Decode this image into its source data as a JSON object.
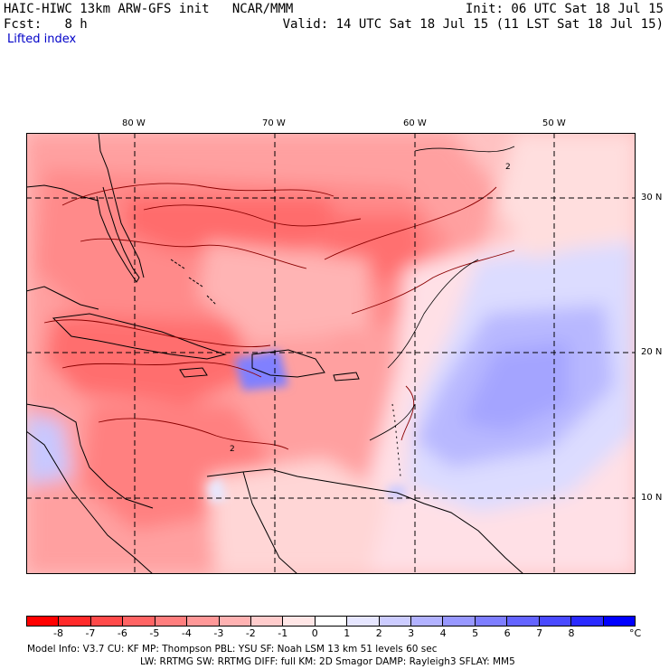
{
  "header": {
    "model_title": "HAIC-HIWC 13km ARW-GFS init",
    "org": "NCAR/MMM",
    "init_label": "Init: 06 UTC Sat 18 Jul 15",
    "fcst_label": "Fcst:",
    "fcst_value": "8 h",
    "valid_label": "Valid: 14 UTC Sat 18 Jul 15 (11 LST Sat 18 Jul 15)",
    "field_name": "Lifted index"
  },
  "map": {
    "lon_labels": [
      "80 W",
      "70 W",
      "60 W",
      "50 W"
    ],
    "lat_labels": [
      "30 N",
      "20 N",
      "10 N"
    ],
    "contour_label": "2",
    "grid_style": "dashed"
  },
  "colorbar": {
    "unit": "°C",
    "ticks": [
      "-8",
      "-7",
      "-6",
      "-5",
      "-4",
      "-3",
      "-2",
      "-1",
      "0",
      "1",
      "2",
      "3",
      "4",
      "5",
      "6",
      "7",
      "8"
    ],
    "colors": [
      "#ff0000",
      "#ff2a2a",
      "#ff4a4a",
      "#ff6464",
      "#ff7e7e",
      "#ff9898",
      "#ffb2b2",
      "#ffcccc",
      "#ffe6e6",
      "#ffffff",
      "#e6e6ff",
      "#ccccff",
      "#b2b2ff",
      "#9898ff",
      "#7e7eff",
      "#6464ff",
      "#4a4aff",
      "#2a2aff",
      "#0000ff"
    ]
  },
  "footer": {
    "line1": "Model Info: V3.7      CU: KF      MP: Thompson      PBL: YSU        SF: Noah LSM      13 km    51 levels    60 sec",
    "line2": "LW: RRTMG      SW: RRTMG   DIFF: full     KM: 2D Smagor  DAMP: Rayleigh3  SFLAY: MM5"
  }
}
